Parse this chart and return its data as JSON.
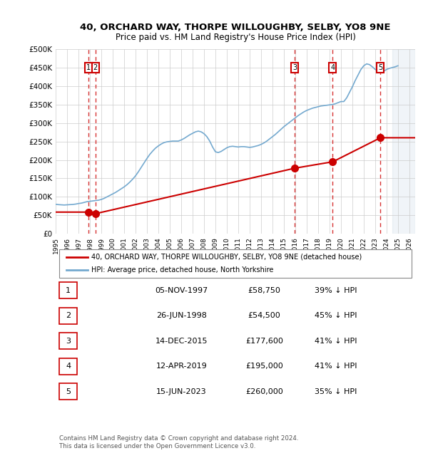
{
  "title": "40, ORCHARD WAY, THORPE WILLOUGHBY, SELBY, YO8 9NE",
  "subtitle": "Price paid vs. HM Land Registry's House Price Index (HPI)",
  "footer": "Contains HM Land Registry data © Crown copyright and database right 2024.\nThis data is licensed under the Open Government Licence v3.0.",
  "ylim": [
    0,
    500000
  ],
  "yticks": [
    0,
    50000,
    100000,
    150000,
    200000,
    250000,
    300000,
    350000,
    400000,
    450000,
    500000
  ],
  "ytick_labels": [
    "£0",
    "£50K",
    "£100K",
    "£150K",
    "£200K",
    "£250K",
    "£300K",
    "£350K",
    "£400K",
    "£450K",
    "£500K"
  ],
  "xlim_start": 1995.0,
  "xlim_end": 2026.5,
  "sales": [
    {
      "num": 1,
      "date": "05-NOV-1997",
      "year": 1997.85,
      "price": 58750,
      "label": "39% ↓ HPI"
    },
    {
      "num": 2,
      "date": "26-JUN-1998",
      "year": 1998.49,
      "price": 54500,
      "label": "45% ↓ HPI"
    },
    {
      "num": 3,
      "date": "14-DEC-2015",
      "year": 2015.95,
      "price": 177600,
      "label": "41% ↓ HPI"
    },
    {
      "num": 4,
      "date": "12-APR-2019",
      "year": 2019.28,
      "price": 195000,
      "label": "41% ↓ HPI"
    },
    {
      "num": 5,
      "date": "15-JUN-2023",
      "year": 2023.46,
      "price": 260000,
      "label": "35% ↓ HPI"
    }
  ],
  "hpi_color": "#6baed6",
  "sale_line_color": "#cc0000",
  "sale_dot_color": "#cc0000",
  "vline_color": "#cc0000",
  "grid_color": "#cccccc",
  "background_color": "#ffffff",
  "chart_bg": "#ffffff",
  "legend_box_color": "#cc0000",
  "hpi_line_color": "#74a9cf",
  "table_rows": [
    [
      "1",
      "05-NOV-1997",
      "£58,750",
      "39% ↓ HPI"
    ],
    [
      "2",
      "26-JUN-1998",
      "£54,500",
      "45% ↓ HPI"
    ],
    [
      "3",
      "14-DEC-2015",
      "£177,600",
      "41% ↓ HPI"
    ],
    [
      "4",
      "12-APR-2019",
      "£195,000",
      "41% ↓ HPI"
    ],
    [
      "5",
      "15-JUN-2023",
      "£260,000",
      "35% ↓ HPI"
    ]
  ],
  "hpi_data": {
    "years": [
      1995.0,
      1995.25,
      1995.5,
      1995.75,
      1996.0,
      1996.25,
      1996.5,
      1996.75,
      1997.0,
      1997.25,
      1997.5,
      1997.75,
      1998.0,
      1998.25,
      1998.5,
      1998.75,
      1999.0,
      1999.25,
      1999.5,
      1999.75,
      2000.0,
      2000.25,
      2000.5,
      2000.75,
      2001.0,
      2001.25,
      2001.5,
      2001.75,
      2002.0,
      2002.25,
      2002.5,
      2002.75,
      2003.0,
      2003.25,
      2003.5,
      2003.75,
      2004.0,
      2004.25,
      2004.5,
      2004.75,
      2005.0,
      2005.25,
      2005.5,
      2005.75,
      2006.0,
      2006.25,
      2006.5,
      2006.75,
      2007.0,
      2007.25,
      2007.5,
      2007.75,
      2008.0,
      2008.25,
      2008.5,
      2008.75,
      2009.0,
      2009.25,
      2009.5,
      2009.75,
      2010.0,
      2010.25,
      2010.5,
      2010.75,
      2011.0,
      2011.25,
      2011.5,
      2011.75,
      2012.0,
      2012.25,
      2012.5,
      2012.75,
      2013.0,
      2013.25,
      2013.5,
      2013.75,
      2014.0,
      2014.25,
      2014.5,
      2014.75,
      2015.0,
      2015.25,
      2015.5,
      2015.75,
      2016.0,
      2016.25,
      2016.5,
      2016.75,
      2017.0,
      2017.25,
      2017.5,
      2017.75,
      2018.0,
      2018.25,
      2018.5,
      2018.75,
      2019.0,
      2019.25,
      2019.5,
      2019.75,
      2020.0,
      2020.25,
      2020.5,
      2020.75,
      2021.0,
      2021.25,
      2021.5,
      2021.75,
      2022.0,
      2022.25,
      2022.5,
      2022.75,
      2023.0,
      2023.25,
      2023.5,
      2023.75,
      2024.0,
      2024.25,
      2024.5,
      2024.75,
      2025.0
    ],
    "prices": [
      80000,
      79000,
      78500,
      78000,
      78500,
      79000,
      79500,
      80500,
      82000,
      83000,
      85000,
      87000,
      88000,
      89000,
      90000,
      91000,
      93000,
      96000,
      100000,
      104000,
      108000,
      112000,
      117000,
      122000,
      127000,
      133000,
      140000,
      148000,
      157000,
      168000,
      180000,
      192000,
      204000,
      215000,
      224000,
      232000,
      238000,
      243000,
      247000,
      249000,
      250000,
      251000,
      251000,
      251000,
      254000,
      258000,
      263000,
      268000,
      272000,
      276000,
      278000,
      276000,
      271000,
      263000,
      251000,
      235000,
      222000,
      220000,
      223000,
      228000,
      233000,
      236000,
      237000,
      236000,
      235000,
      236000,
      236000,
      235000,
      234000,
      235000,
      237000,
      239000,
      242000,
      246000,
      251000,
      257000,
      263000,
      269000,
      276000,
      283000,
      290000,
      296000,
      302000,
      308000,
      314000,
      320000,
      325000,
      330000,
      334000,
      337000,
      340000,
      342000,
      344000,
      346000,
      347000,
      348000,
      349000,
      350000,
      352000,
      355000,
      358000,
      358000,
      368000,
      383000,
      398000,
      415000,
      430000,
      445000,
      455000,
      460000,
      458000,
      452000,
      445000,
      440000,
      438000,
      440000,
      445000,
      448000,
      450000,
      452000,
      455000
    ]
  }
}
